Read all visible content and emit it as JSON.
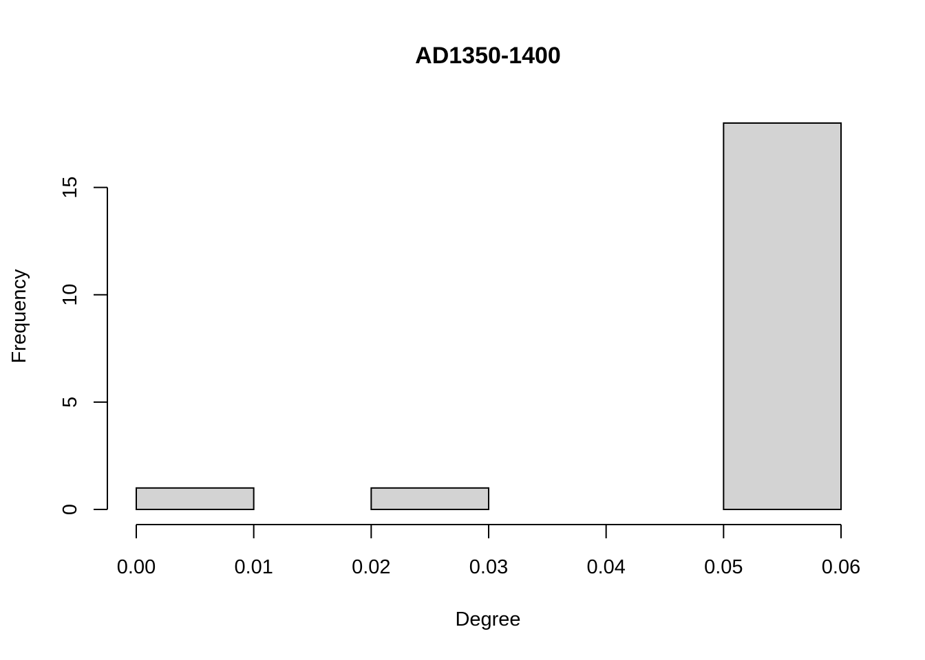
{
  "chart_data": {
    "type": "bar",
    "subtype": "histogram",
    "title": "AD1350-1400",
    "xlabel": "Degree",
    "ylabel": "Frequency",
    "bins": [
      {
        "start": 0.0,
        "end": 0.01,
        "count": 1
      },
      {
        "start": 0.01,
        "end": 0.02,
        "count": 0
      },
      {
        "start": 0.02,
        "end": 0.03,
        "count": 1
      },
      {
        "start": 0.03,
        "end": 0.04,
        "count": 0
      },
      {
        "start": 0.04,
        "end": 0.05,
        "count": 0
      },
      {
        "start": 0.05,
        "end": 0.06,
        "count": 18
      }
    ],
    "xlim": [
      0.0,
      0.06
    ],
    "ylim": [
      0,
      18
    ],
    "x_ticks": [
      "0.00",
      "0.01",
      "0.02",
      "0.03",
      "0.04",
      "0.05",
      "0.06"
    ],
    "x_tick_values": [
      0.0,
      0.01,
      0.02,
      0.03,
      0.04,
      0.05,
      0.06
    ],
    "y_ticks": [
      "0",
      "5",
      "10",
      "15"
    ],
    "y_tick_values": [
      0,
      5,
      10,
      15
    ],
    "bar_color": "#d3d3d3",
    "grid": false,
    "legend": "none"
  }
}
